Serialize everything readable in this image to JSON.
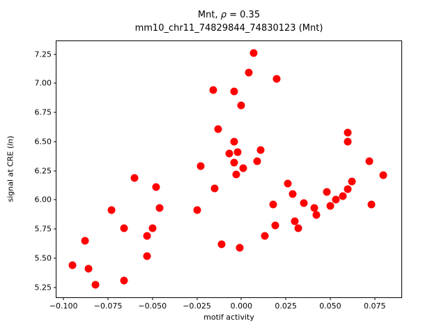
{
  "figure": {
    "title_parts": {
      "pre": "Mnt, ",
      "rho": "ρ",
      "post": " = 0.35"
    },
    "subtitle": "mm10_chr11_74829844_74830123 (Mnt)",
    "xlabel": "motif activity",
    "ylabel_parts": {
      "pre": "signal at CRE (",
      "italic": "ln",
      "post": ")"
    },
    "background_color": "#ffffff",
    "axis_color": "#000000"
  },
  "chart_data": {
    "type": "scatter",
    "title": "Mnt, ρ = 0.35",
    "subtitle": "mm10_chr11_74829844_74830123 (Mnt)",
    "xlabel": "motif activity",
    "ylabel": "signal at CRE (ln)",
    "marker_color": "#ff0000",
    "marker_shape": "circle",
    "grid": false,
    "legend": null,
    "xlim": [
      -0.104,
      0.09
    ],
    "ylim": [
      5.165,
      7.361
    ],
    "xtick_values": [
      -0.1,
      -0.075,
      -0.05,
      -0.025,
      0.0,
      0.025,
      0.05,
      0.075
    ],
    "xtick_labels": [
      "−0.100",
      "−0.075",
      "−0.050",
      "−0.025",
      "0.000",
      "0.025",
      "0.050",
      "0.075"
    ],
    "ytick_values": [
      5.25,
      5.5,
      5.75,
      6.0,
      6.25,
      6.5,
      6.75,
      7.0,
      7.25
    ],
    "ytick_labels": [
      "5.25",
      "5.50",
      "5.75",
      "6.00",
      "6.25",
      "6.50",
      "6.75",
      "7.00",
      "7.25"
    ],
    "points": [
      [
        0.007,
        7.26
      ],
      [
        0.004,
        7.09
      ],
      [
        0.02,
        7.04
      ],
      [
        -0.016,
        6.94
      ],
      [
        -0.004,
        6.93
      ],
      [
        0.0,
        6.81
      ],
      [
        -0.013,
        6.61
      ],
      [
        -0.004,
        6.5
      ],
      [
        -0.007,
        6.4
      ],
      [
        -0.002,
        6.41
      ],
      [
        0.011,
        6.43
      ],
      [
        -0.004,
        6.32
      ],
      [
        0.009,
        6.33
      ],
      [
        0.001,
        6.27
      ],
      [
        -0.023,
        6.29
      ],
      [
        -0.003,
        6.22
      ],
      [
        -0.015,
        6.1
      ],
      [
        0.06,
        6.58
      ],
      [
        0.06,
        6.5
      ],
      [
        0.072,
        6.33
      ],
      [
        0.08,
        6.21
      ],
      [
        0.062,
        6.16
      ],
      [
        0.026,
        6.14
      ],
      [
        0.06,
        6.09
      ],
      [
        0.029,
        6.05
      ],
      [
        0.048,
        6.07
      ],
      [
        0.057,
        6.03
      ],
      [
        0.053,
        6.0
      ],
      [
        0.05,
        5.95
      ],
      [
        0.035,
        5.97
      ],
      [
        0.041,
        5.93
      ],
      [
        0.042,
        5.87
      ],
      [
        0.03,
        5.82
      ],
      [
        0.032,
        5.76
      ],
      [
        0.073,
        5.96
      ],
      [
        -0.025,
        5.91
      ],
      [
        0.018,
        5.96
      ],
      [
        0.019,
        5.78
      ],
      [
        0.013,
        5.69
      ],
      [
        -0.011,
        5.62
      ],
      [
        -0.001,
        5.59
      ],
      [
        -0.06,
        6.19
      ],
      [
        -0.048,
        6.11
      ],
      [
        -0.073,
        5.91
      ],
      [
        -0.046,
        5.93
      ],
      [
        -0.066,
        5.76
      ],
      [
        -0.05,
        5.76
      ],
      [
        -0.053,
        5.69
      ],
      [
        -0.088,
        5.65
      ],
      [
        -0.053,
        5.52
      ],
      [
        -0.095,
        5.44
      ],
      [
        -0.086,
        5.41
      ],
      [
        -0.066,
        5.31
      ],
      [
        -0.082,
        5.27
      ]
    ]
  }
}
